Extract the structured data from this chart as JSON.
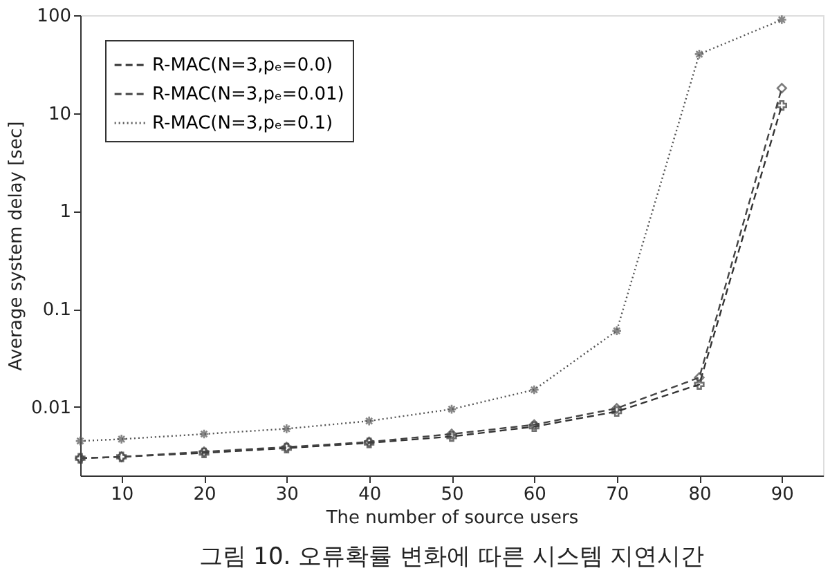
{
  "chart_data": {
    "type": "line",
    "xlabel": "The number of source users",
    "ylabel": "Average system delay [sec]",
    "x": [
      5,
      10,
      20,
      30,
      40,
      50,
      60,
      70,
      80,
      90
    ],
    "series": [
      {
        "name": "R-MAC(N=3,pₑ=0.0)",
        "color": "#333333",
        "marker": "cross",
        "line_style": "dashed",
        "values": [
          0.003,
          0.0031,
          0.0034,
          0.0038,
          0.0043,
          0.005,
          0.0063,
          0.009,
          0.017,
          12
        ]
      },
      {
        "name": "R-MAC(N=3,pₑ=0.01)",
        "color": "#444444",
        "marker": "diamond",
        "line_style": "dashed",
        "values": [
          0.003,
          0.0031,
          0.0035,
          0.0039,
          0.0044,
          0.0053,
          0.0066,
          0.0097,
          0.02,
          18
        ]
      },
      {
        "name": "R-MAC(N=3,pₑ=0.1)",
        "color": "#555555",
        "marker": "cross",
        "line_style": "dotted",
        "values": [
          0.0045,
          0.0047,
          0.0053,
          0.006,
          0.0072,
          0.0095,
          0.015,
          0.06,
          40,
          90
        ]
      }
    ],
    "xlim": [
      5,
      95
    ],
    "xticks": [
      10,
      20,
      30,
      40,
      50,
      60,
      70,
      80,
      90
    ],
    "ylim": [
      0.002,
      100
    ],
    "yticks": [
      0.01,
      0.1,
      1,
      10,
      100
    ],
    "log": "y",
    "grid": false,
    "legend": "top left",
    "annotations": [
      "그림 10. 오류확률 변화에 따른 시스템 지연시간"
    ]
  }
}
